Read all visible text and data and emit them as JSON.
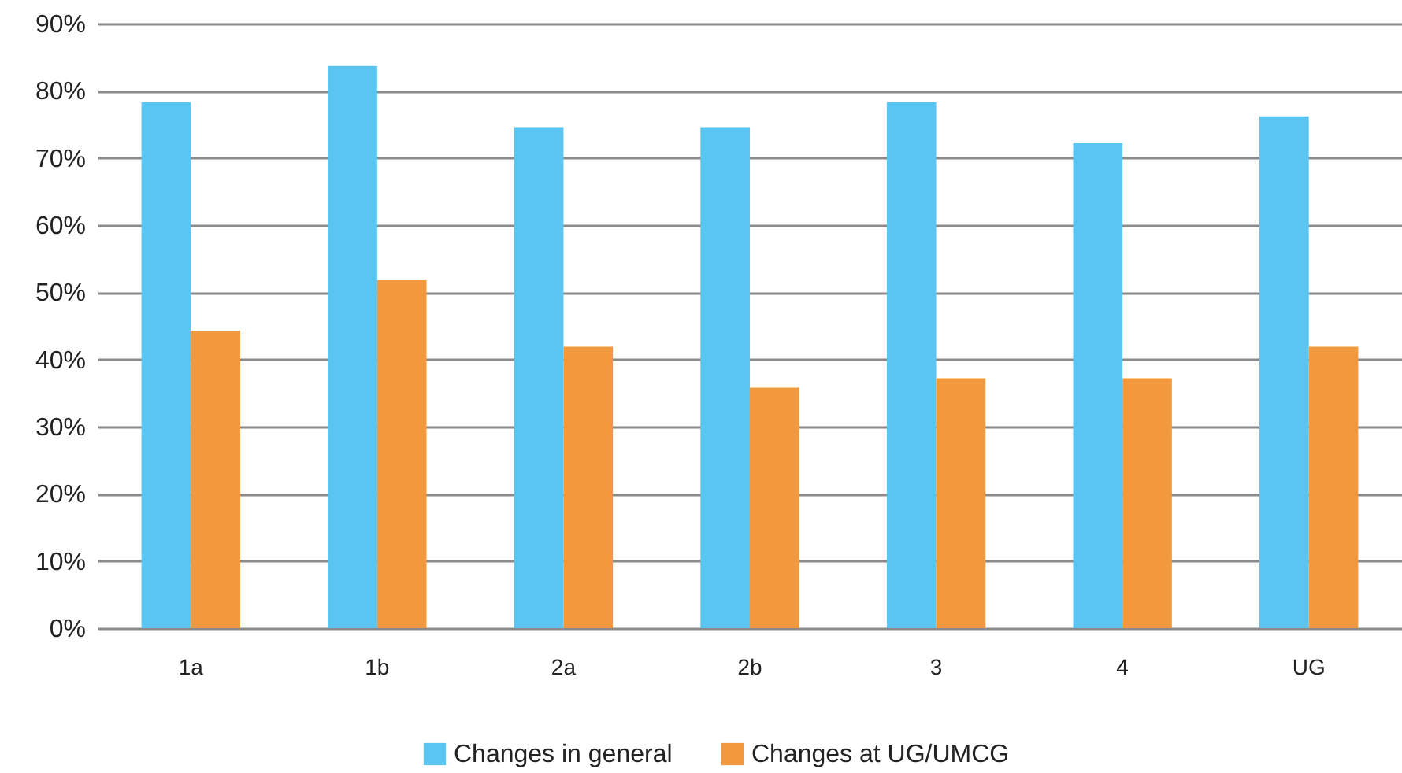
{
  "chart_data": {
    "type": "bar",
    "categories": [
      "1a",
      "1b",
      "2a",
      "2b",
      "3",
      "4",
      "UG"
    ],
    "series": [
      {
        "name": "Changes in general",
        "color": "#5bc5f2",
        "values": [
          78.3,
          83.7,
          74.6,
          74.6,
          78.3,
          72.2,
          76.2
        ]
      },
      {
        "name": "Changes at UG/UMCG",
        "color": "#f2993d",
        "values": [
          44.3,
          51.8,
          41.9,
          35.8,
          37.2,
          37.2,
          41.9
        ]
      }
    ],
    "ylim": [
      0,
      90
    ],
    "yticks": [
      {
        "value": 0,
        "label": "0%"
      },
      {
        "value": 10,
        "label": "10%"
      },
      {
        "value": 20,
        "label": "20%"
      },
      {
        "value": 30,
        "label": "30%"
      },
      {
        "value": 40,
        "label": "40%"
      },
      {
        "value": 50,
        "label": "50%"
      },
      {
        "value": 60,
        "label": "60%"
      },
      {
        "value": 70,
        "label": "70%"
      },
      {
        "value": 80,
        "label": "80%"
      },
      {
        "value": 90,
        "label": "90%"
      }
    ],
    "grid": "y",
    "legend": "bottom"
  }
}
